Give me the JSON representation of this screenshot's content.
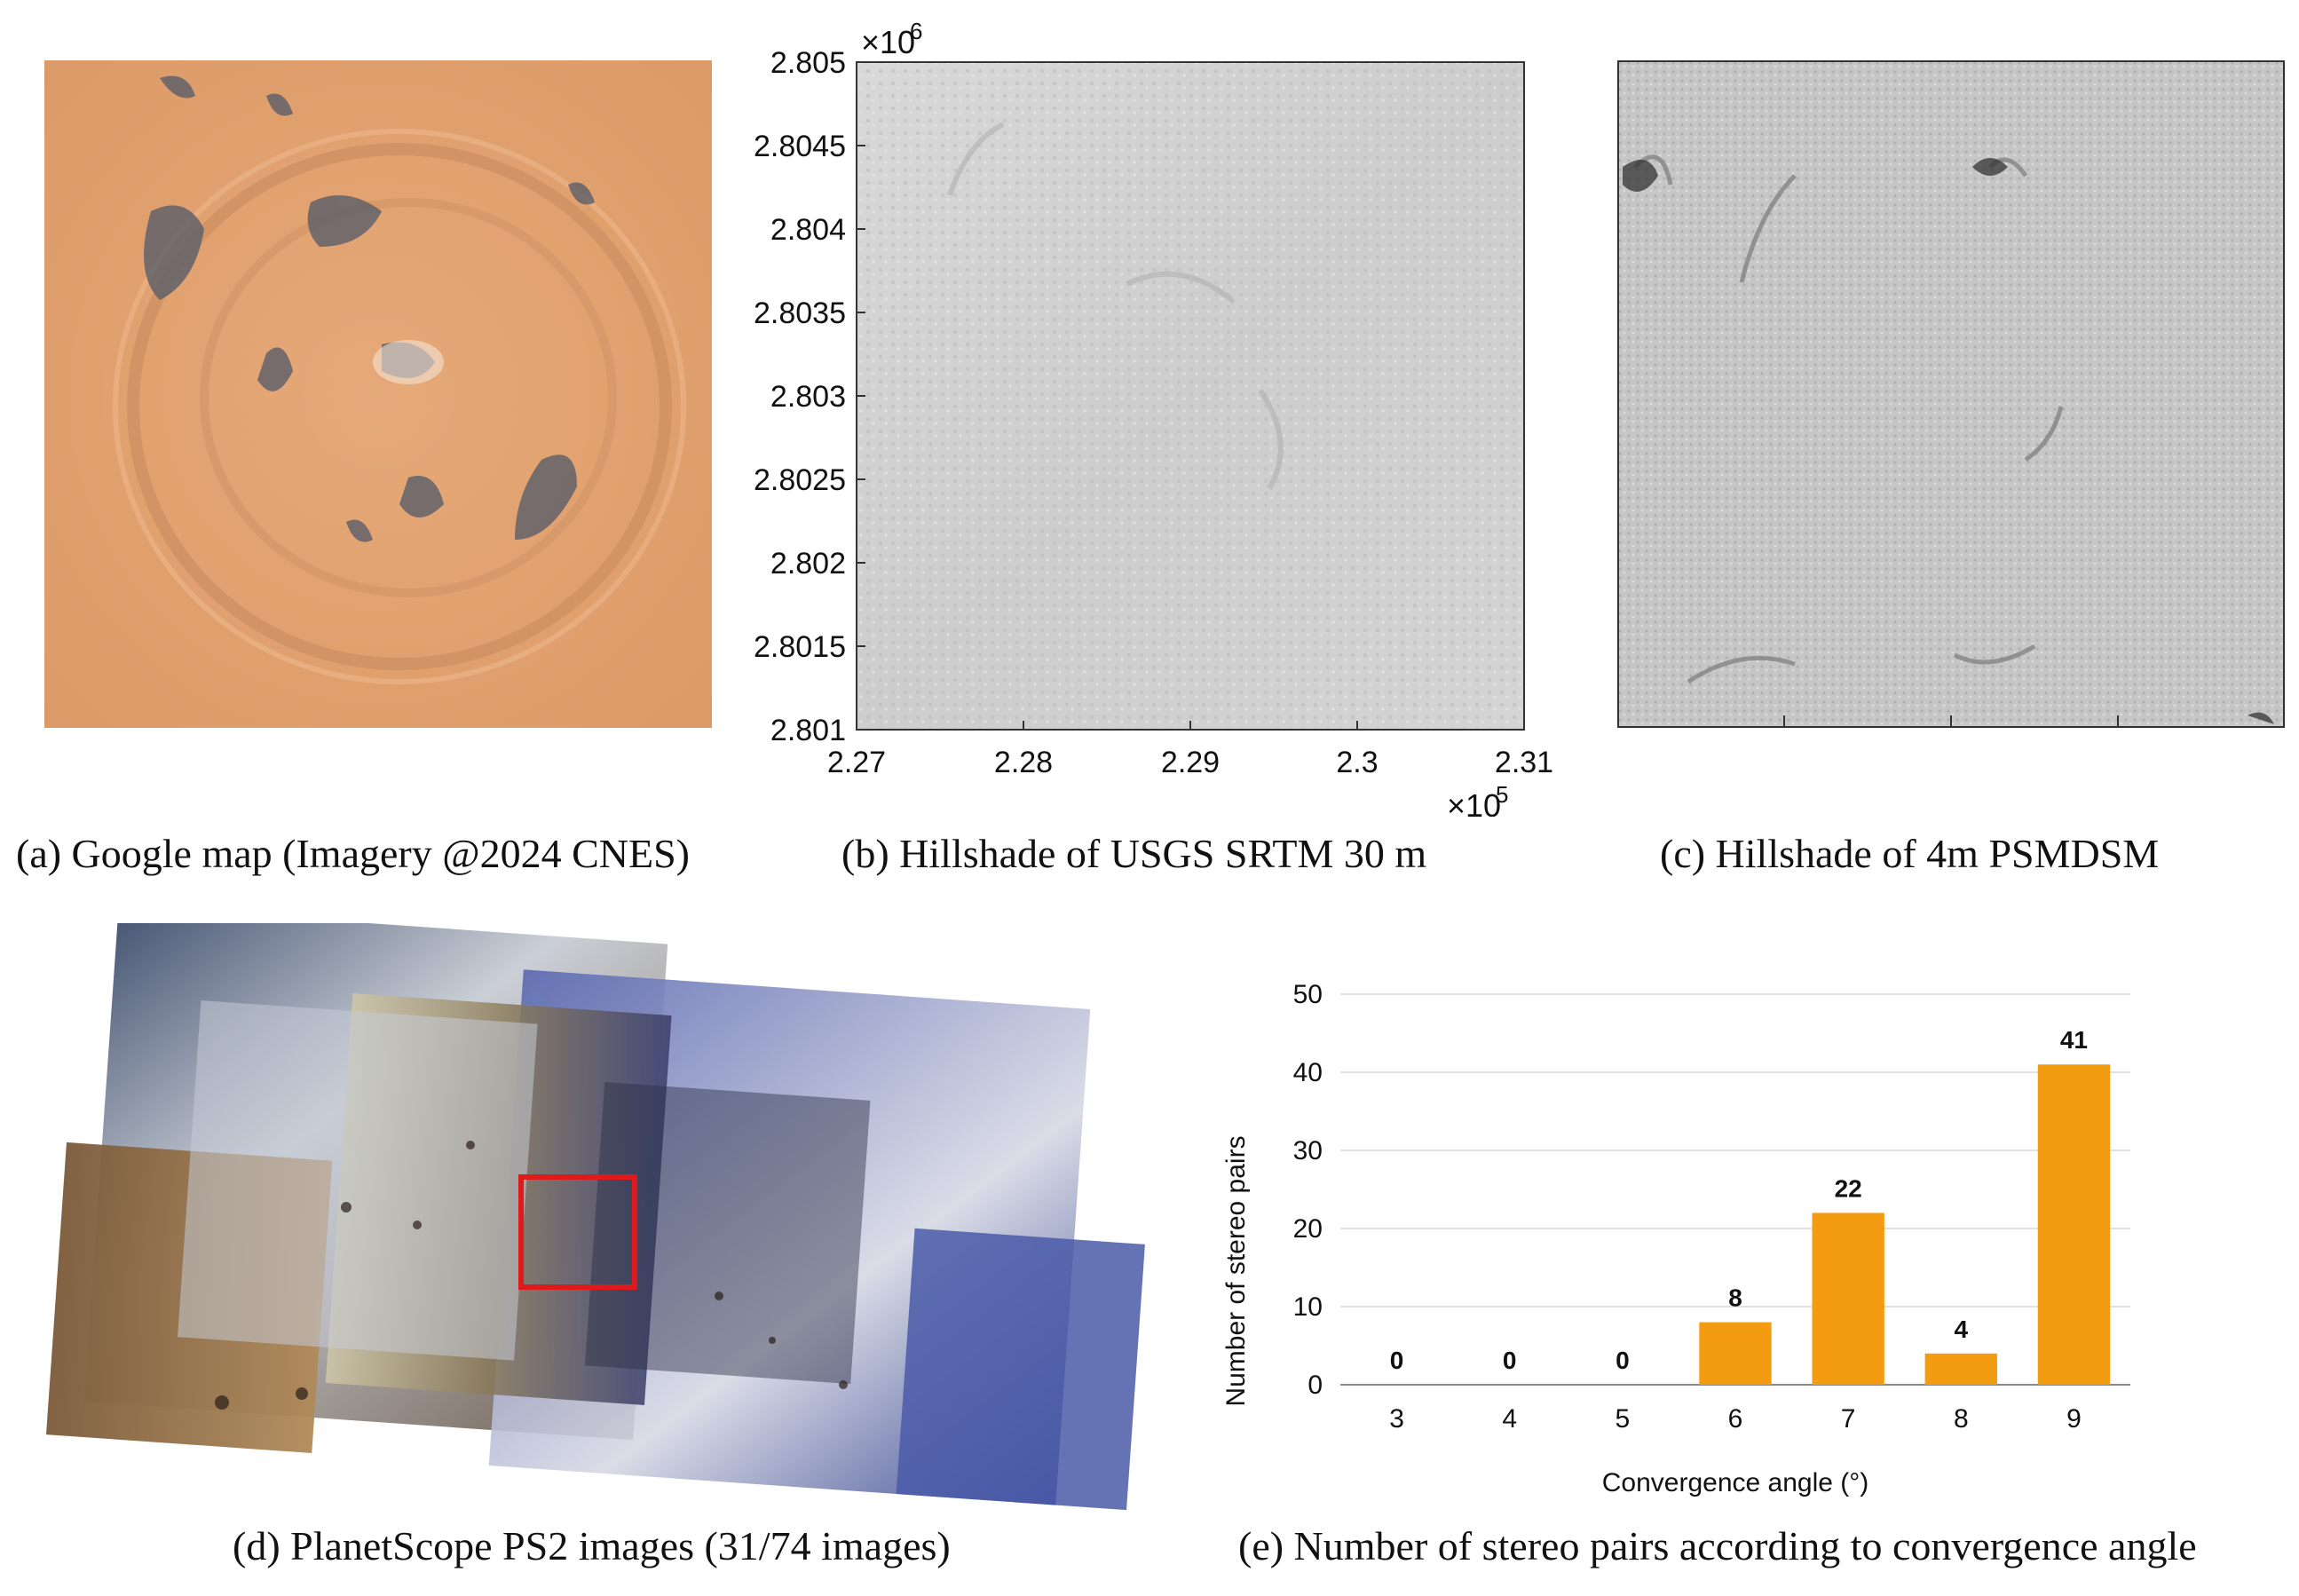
{
  "captions": {
    "a": "(a) Google map (Imagery @2024 CNES)",
    "b": "(b) Hillshade of USGS SRTM 30 m",
    "c": "(c) Hillshade of 4m PSMDSM",
    "d": "(d) PlanetScope PS2 images (31/74 images)",
    "e": "(e) Number of stereo pairs according to convergence angle"
  },
  "panel_b_axes": {
    "y_ticks": [
      "2.805",
      "2.8045",
      "2.804",
      "2.8035",
      "2.803",
      "2.8025",
      "2.802",
      "2.8015",
      "2.801"
    ],
    "y_exponent_base": "×10",
    "y_exponent_power": "6",
    "x_ticks": [
      "2.27",
      "2.28",
      "2.29",
      "2.3",
      "2.31"
    ],
    "x_exponent_base": "×10",
    "x_exponent_power": "5"
  },
  "colors": {
    "bar": "#f39c12",
    "desert": "#e0a070",
    "hillshade": "#d0d0d0",
    "highlight_box": "#e0191b"
  },
  "chart_data": {
    "type": "bar",
    "categories": [
      "3",
      "4",
      "5",
      "6",
      "7",
      "8",
      "9"
    ],
    "values": [
      0,
      0,
      0,
      8,
      22,
      4,
      41
    ],
    "data_labels": [
      "0",
      "0",
      "0",
      "8",
      "22",
      "4",
      "41"
    ],
    "xlabel": "Convergence angle (°)",
    "ylabel": "Number of stereo pairs",
    "ylim": [
      0,
      50
    ],
    "y_ticks": [
      "0",
      "10",
      "20",
      "30",
      "40",
      "50"
    ],
    "grid": true
  }
}
